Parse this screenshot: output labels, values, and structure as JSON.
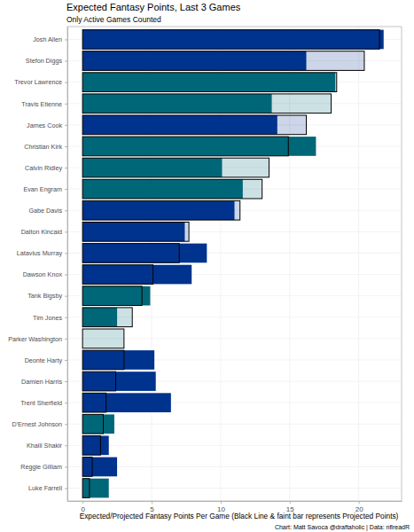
{
  "chart_data": {
    "type": "bar",
    "orientation": "horizontal",
    "title": "Expected Fantasy Points, Last 3 Games",
    "subtitle": "Only Active Games Counted",
    "x_label": "Expected/Projected Fantasy Points Per Game (Black Line & faint bar represents Projected Points)",
    "caption": "Chart: Matt Savoca @draftaholic | Data: nflreadR",
    "categories": [
      "Josh Allen",
      "Stefon Diggs",
      "Trevor Lawrence",
      "Travis Etienne",
      "James Cook",
      "Christian Kirk",
      "Calvin Ridley",
      "Evan Engram",
      "Gabe Davis",
      "Dalton Kincaid",
      "Latavius Murray",
      "Dawson Knox",
      "Tank Bigsby",
      "Tim Jones",
      "Parker Washington",
      "Deonte Harty",
      "Damien Harris",
      "Trent Sherfield",
      "D'Ernest Johnson",
      "Khalil Shakir",
      "Reggie Gilliam",
      "Luke Farrell"
    ],
    "colors": [
      "#00338D",
      "#00338D",
      "#006778",
      "#006778",
      "#00338D",
      "#006778",
      "#006778",
      "#006778",
      "#00338D",
      "#00338D",
      "#00338D",
      "#00338D",
      "#006778",
      "#006778",
      "#006778",
      "#00338D",
      "#00338D",
      "#00338D",
      "#006778",
      "#00338D",
      "#00338D",
      "#006778"
    ],
    "series": [
      {
        "values": [
          21.5,
          20.4,
          18.4,
          18.0,
          16.2,
          14.9,
          13.5,
          13.0,
          11.4,
          7.7,
          7.0,
          5.1,
          4.3,
          3.6,
          3.0,
          3.0,
          2.4,
          1.7,
          1.5,
          1.3,
          0.7,
          0.5
        ]
      },
      {
        "values": [
          21.8,
          16.2,
          18.3,
          13.7,
          14.1,
          16.9,
          10.1,
          11.6,
          11.0,
          7.4,
          9.0,
          7.9,
          4.9,
          2.5,
          0,
          5.2,
          5.3,
          6.4,
          2.3,
          1.9,
          2.5,
          1.9
        ]
      }
    ],
    "xlim": [
      -1.1,
      23.1
    ],
    "xticks": [
      0,
      5,
      10,
      15,
      20
    ],
    "grid": true
  }
}
